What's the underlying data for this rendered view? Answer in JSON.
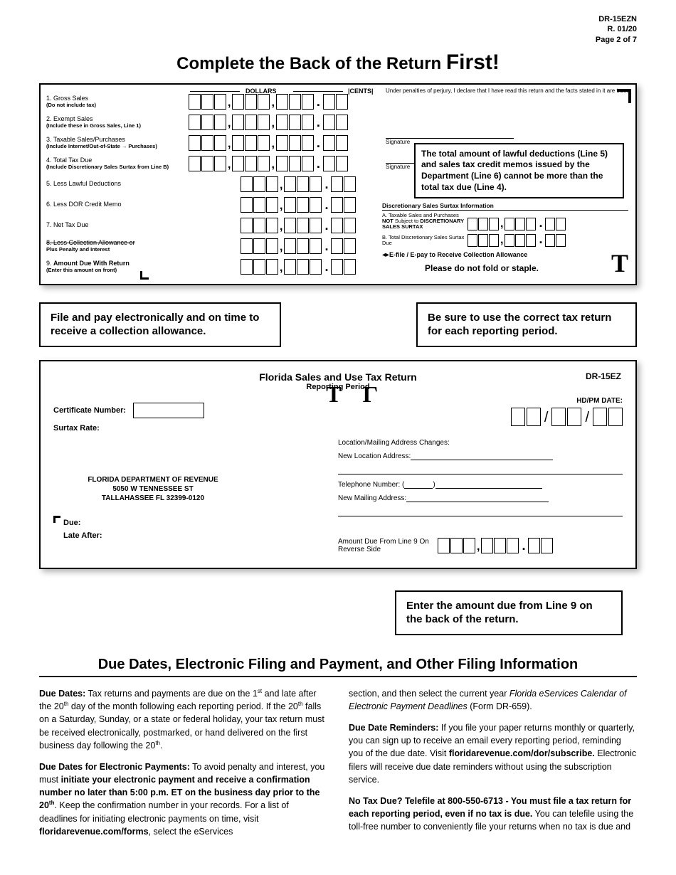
{
  "header": {
    "form_id": "DR-15EZN",
    "revision": "R. 01/20",
    "page": "Page 2 of 7"
  },
  "main_title_a": "Complete the Back of the Return ",
  "main_title_b": "First!",
  "currency": {
    "dollars": "DOLLARS",
    "cents": "CENTS"
  },
  "perjury": "Under penalties of perjury, I declare that I have read this return and the facts stated in it are true.",
  "sig1": "Signature",
  "sig2": "Signature",
  "rows": [
    {
      "n": "1.",
      "t": "Gross Sales",
      "s": "(Do not include tax)"
    },
    {
      "n": "2.",
      "t": "Exempt Sales",
      "s": "(Include these in Gross Sales, Line 1)"
    },
    {
      "n": "3.",
      "t": "Taxable Sales/Purchases",
      "s": "(Include Internet/Out-of-State →\nPurchases)"
    },
    {
      "n": "4.",
      "t": "Total Tax Due",
      "s": "(Include Discretionary Sales Surtax from Line B)"
    },
    {
      "n": "5.",
      "t": "Less Lawful Deductions",
      "s": ""
    },
    {
      "n": "6.",
      "t": "Less DOR Credit Memo",
      "s": ""
    },
    {
      "n": "7.",
      "t": "Net Tax Due",
      "s": ""
    },
    {
      "n": "8.",
      "t": "Less Collection Allowance or",
      "s": "Plus Penalty and Interest",
      "strike": true,
      "bold_sub": true
    },
    {
      "n": "9.",
      "t": "Amount Due With Return",
      "s": "(Enter this amount on front)",
      "bold": true
    }
  ],
  "callout1": "The total amount of lawful deductions (Line 5) and sales tax credit memos issued by the Department (Line 6) cannot be more than the total tax due (Line 4).",
  "disc_title": "Discretionary Sales Surtax Information",
  "disc_a": "A. Taxable Sales and Purchases NOT Subject to DISCRETIONARY SALES SURTAX",
  "disc_b": "B. Total Discretionary Sales Surtax Due",
  "efile": "E-file / E-pay to Receive Collection Allowance",
  "no_fold": "Please do not fold or staple.",
  "note1": "File and pay electronically and on time to receive a collection allowance.",
  "note2": "Be sure to use the correct tax return for each reporting period.",
  "fb": {
    "title": "Florida Sales and Use Tax Return",
    "sub": "Reporting Period",
    "dr": "DR-15EZ",
    "cert": "Certificate Number:",
    "surtax": "Surtax Rate:",
    "hdpm": "HD/PM DATE:",
    "loc_changes": "Location/Mailing Address Changes:",
    "new_loc": "New Location Address:",
    "tel": "Telephone Number: (",
    "new_mail": "New Mailing Address:",
    "dept1": "FLORIDA DEPARTMENT OF REVENUE",
    "dept2": "5050 W TENNESSEE ST",
    "dept3": "TALLAHASSEE FL 32399-0120",
    "due": "Due:",
    "late": "Late After:",
    "amt_due": "Amount Due From Line 9 On Reverse Side"
  },
  "callout2": "Enter the amount due from Line 9 on the back of the return.",
  "section": "Due Dates, Electronic Filing and Payment, and Other Filing Information",
  "body": {
    "p1a": "Due Dates:",
    "p1b": " Tax returns and payments are due on the 1",
    "p1c": " and late after the 20",
    "p1d": " day of the month following each reporting period. If the 20",
    "p1e": " falls on a Saturday, Sunday, or a state or federal holiday, your tax return must be received electronically, postmarked, or hand delivered on the first business day following the 20",
    "p1f": ".",
    "p2a": "Due Dates for Electronic Payments:",
    "p2b": "  To avoid penalty and interest, you must ",
    "p2c": "initiate your electronic payment and receive a confirmation number no later than 5:00 p.m. ET on the business day prior to the 20",
    "p2d": ". Keep the confirmation number in your records. For a list of deadlines for initiating electronic payments on time, visit ",
    "p2e": "floridarevenue.com/forms",
    "p2f": ", select the eServices",
    "p3a": "section, and then select the current year ",
    "p3b": "Florida eServices Calendar of Electronic Payment Deadlines",
    "p3c": " (Form DR-659).",
    "p4a": "Due Date Reminders:",
    "p4b": " If you file your paper returns monthly or quarterly, you can sign up to receive an email every reporting period, reminding you of the due date. Visit ",
    "p4c": "floridarevenue.com/dor/subscribe.",
    "p4d": " Electronic filers will receive due date reminders without using the subscription service.",
    "p5a": "No Tax Due? Telefile at 800-550-6713 - You must file a tax return for each reporting period, even if no tax is due.",
    "p5b": " You can telefile using the toll-free number to conveniently file your returns when no tax is due and"
  }
}
